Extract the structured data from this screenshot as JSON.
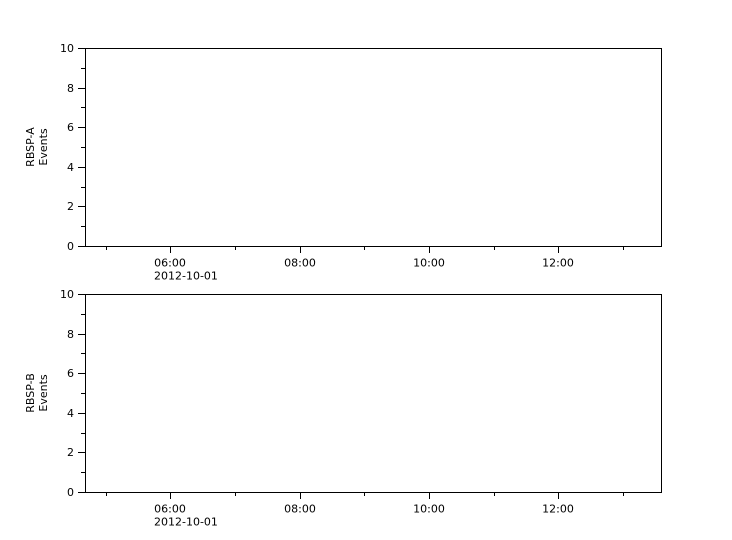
{
  "figure": {
    "background_color": "#ffffff",
    "line_color": "#000000"
  },
  "chart_data": [
    {
      "type": "line",
      "panel_name": "RBSP-A",
      "ylabel_lines": [
        "RBSP-A",
        "Events"
      ],
      "ylim": [
        0,
        10
      ],
      "yticks_major": [
        0,
        2,
        4,
        6,
        8,
        10
      ],
      "yticks_minor": [
        1,
        3,
        5,
        7,
        9
      ],
      "ytick_labels": [
        "0",
        "2",
        "4",
        "6",
        "8",
        "10"
      ],
      "xlim_hours": [
        4.68,
        13.59
      ],
      "xticks_major": [
        {
          "hour": 6,
          "label": "06:00"
        },
        {
          "hour": 8,
          "label": "08:00"
        },
        {
          "hour": 10,
          "label": "10:00"
        },
        {
          "hour": 12,
          "label": "12:00"
        }
      ],
      "xticks_minor_hours": [
        5,
        7,
        9,
        11,
        13
      ],
      "x_date_label": "2012-10-01",
      "grid": false,
      "series": []
    },
    {
      "type": "line",
      "panel_name": "RBSP-B",
      "ylabel_lines": [
        "RBSP-B",
        "Events"
      ],
      "ylim": [
        0,
        10
      ],
      "yticks_major": [
        0,
        2,
        4,
        6,
        8,
        10
      ],
      "yticks_minor": [
        1,
        3,
        5,
        7,
        9
      ],
      "ytick_labels": [
        "0",
        "2",
        "4",
        "6",
        "8",
        "10"
      ],
      "xlim_hours": [
        4.68,
        13.59
      ],
      "xticks_major": [
        {
          "hour": 6,
          "label": "06:00"
        },
        {
          "hour": 8,
          "label": "08:00"
        },
        {
          "hour": 10,
          "label": "10:00"
        },
        {
          "hour": 12,
          "label": "12:00"
        }
      ],
      "xticks_minor_hours": [
        5,
        7,
        9,
        11,
        13
      ],
      "x_date_label": "2012-10-01",
      "grid": false,
      "series": []
    }
  ]
}
